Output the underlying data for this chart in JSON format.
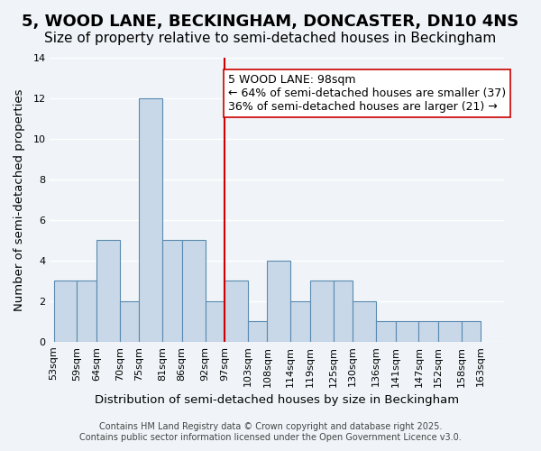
{
  "title": "5, WOOD LANE, BECKINGHAM, DONCASTER, DN10 4NS",
  "subtitle": "Size of property relative to semi-detached houses in Beckingham",
  "xlabel": "Distribution of semi-detached houses by size in Beckingham",
  "ylabel": "Number of semi-detached properties",
  "footnote1": "Contains HM Land Registry data © Crown copyright and database right 2025.",
  "footnote2": "Contains public sector information licensed under the Open Government Licence v3.0.",
  "bin_labels": [
    "53sqm",
    "59sqm",
    "64sqm",
    "70sqm",
    "75sqm",
    "81sqm",
    "86sqm",
    "92sqm",
    "97sqm",
    "103sqm",
    "108sqm",
    "114sqm",
    "119sqm",
    "125sqm",
    "130sqm",
    "136sqm",
    "141sqm",
    "147sqm",
    "152sqm",
    "158sqm",
    "163sqm"
  ],
  "bin_edges": [
    53,
    59,
    64,
    70,
    75,
    81,
    86,
    92,
    97,
    103,
    108,
    114,
    119,
    125,
    130,
    136,
    141,
    147,
    152,
    158,
    163
  ],
  "bar_heights": [
    3,
    3,
    5,
    2,
    12,
    5,
    5,
    2,
    3,
    1,
    4,
    2,
    3,
    3,
    2,
    1,
    1,
    1,
    1,
    1
  ],
  "bar_color": "#c8d8e8",
  "bar_edge_color": "#5a8ab0",
  "reference_line_x": 97,
  "reference_line_color": "#cc0000",
  "annotation_text": "5 WOOD LANE: 98sqm\n← 64% of semi-detached houses are smaller (37)\n36% of semi-detached houses are larger (21) →",
  "annotation_box_color": "#ffffff",
  "annotation_box_edge_color": "#cc0000",
  "ylim": [
    0,
    14
  ],
  "yticks": [
    0,
    2,
    4,
    6,
    8,
    10,
    12,
    14
  ],
  "bg_color": "#f0f4f8",
  "grid_color": "#ffffff",
  "title_fontsize": 13,
  "subtitle_fontsize": 11,
  "axis_label_fontsize": 9.5,
  "tick_fontsize": 8,
  "annotation_fontsize": 9,
  "footnote_fontsize": 7
}
